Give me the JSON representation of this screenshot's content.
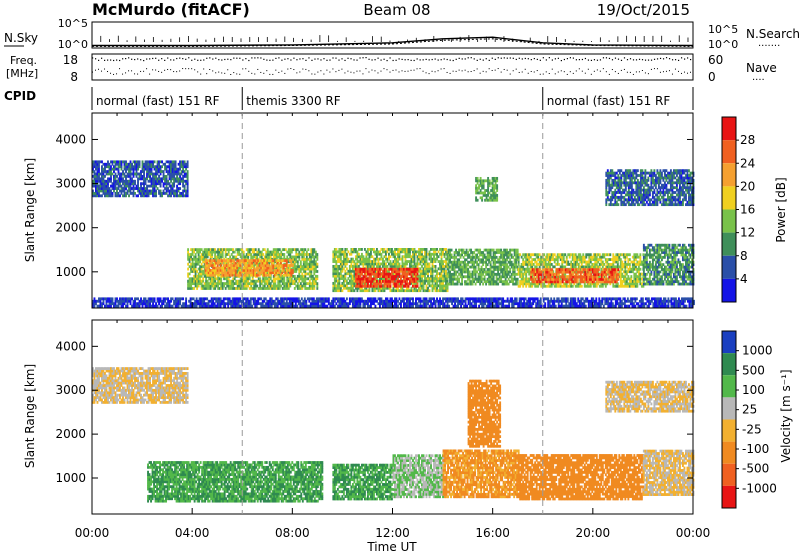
{
  "header": {
    "station": "McMurdo (fitACF)",
    "beam": "Beam 08",
    "date": "19/Oct/2015"
  },
  "noise_panel": {
    "left_label": "N.Sky",
    "right_label": "N.Search",
    "right_dots": "·······",
    "left_ticks": [
      "10^5",
      "10^0"
    ],
    "right_ticks": [
      "10^5",
      "10^0"
    ]
  },
  "freq_panel": {
    "left_label_1": "Freq.",
    "left_label_2": "[MHz]",
    "right_label": "Nave",
    "right_dots": "····",
    "left_ticks": [
      "18",
      "8"
    ],
    "right_ticks": [
      "60",
      "0"
    ]
  },
  "cpid": {
    "label": "CPID",
    "segments": [
      {
        "start_hour": 0,
        "end_hour": 6,
        "text": "normal (fast) 151 RF"
      },
      {
        "start_hour": 6,
        "end_hour": 18,
        "text": "themis 3300 RF"
      },
      {
        "start_hour": 18,
        "end_hour": 24,
        "text": "normal (fast) 151 RF"
      }
    ]
  },
  "power_panel": {
    "ylabel": "Slant Range [km]",
    "yticks": [
      "1000",
      "2000",
      "3000",
      "4000"
    ],
    "colorbar_label": "Power [dB]",
    "colorbar_ticks": [
      "4",
      "8",
      "12",
      "16",
      "20",
      "24",
      "28"
    ],
    "colors": [
      "#1414e6",
      "#2a4fa8",
      "#3f8f5a",
      "#79c24a",
      "#f0d020",
      "#f5a030",
      "#f06020",
      "#e81414"
    ]
  },
  "velocity_panel": {
    "ylabel": "Slant Range [km]",
    "yticks": [
      "1000",
      "2000",
      "3000",
      "4000"
    ],
    "colorbar_label": "Velocity [m s⁻¹]",
    "colorbar_ticks": [
      "1000",
      "500",
      "100",
      "25",
      "-25",
      "-100",
      "-500",
      "-1000"
    ],
    "colors": [
      "#1a3fc0",
      "#2f8a50",
      "#52b84a",
      "#b8b8b8",
      "#f2b030",
      "#f08a20",
      "#f06020",
      "#e81414"
    ]
  },
  "x_axis": {
    "label": "Time UT",
    "ticks": [
      "00:00",
      "04:00",
      "08:00",
      "12:00",
      "16:00",
      "20:00",
      "00:00"
    ]
  },
  "chart_data": [
    {
      "type": "line",
      "title": "",
      "xlabel": "",
      "ylabel": "N.Sky",
      "x_range_hours": [
        0,
        24
      ],
      "series": [
        {
          "name": "N.Sky",
          "x": [
            0,
            4,
            8,
            12,
            14,
            16,
            18,
            20,
            24
          ],
          "values": [
            3,
            3,
            4,
            10,
            60,
            120,
            10,
            4,
            3
          ]
        },
        {
          "name": "N.Search",
          "x": [
            0,
            4,
            8,
            12,
            14,
            16,
            18,
            20,
            24
          ],
          "values": [
            2,
            2,
            3,
            6,
            30,
            60,
            6,
            3,
            2
          ]
        }
      ]
    },
    {
      "type": "scatter",
      "title": "",
      "xlabel": "Time UT",
      "ylabel": "Slant Range [km]",
      "x_range_hours": [
        0,
        24
      ],
      "ylim": [
        180,
        4600
      ],
      "colorbar": {
        "label": "Power [dB]",
        "range": [
          0,
          30
        ],
        "ticks": [
          4,
          8,
          12,
          16,
          20,
          24,
          28
        ]
      },
      "regions": [
        {
          "t0": 0.0,
          "t1": 3.8,
          "r0": 2700,
          "r1": 3500,
          "value": 6
        },
        {
          "t0": 0.0,
          "t1": 24.0,
          "r0": 200,
          "r1": 380,
          "value": 4
        },
        {
          "t0": 3.8,
          "t1": 9.0,
          "r0": 600,
          "r1": 1500,
          "value": 14
        },
        {
          "t0": 4.5,
          "t1": 8.0,
          "r0": 900,
          "r1": 1250,
          "value": 22
        },
        {
          "t0": 9.6,
          "t1": 14.2,
          "r0": 550,
          "r1": 1500,
          "value": 14
        },
        {
          "t0": 10.5,
          "t1": 13.0,
          "r0": 650,
          "r1": 1050,
          "value": 28
        },
        {
          "t0": 14.2,
          "t1": 17.0,
          "r0": 700,
          "r1": 1500,
          "value": 12
        },
        {
          "t0": 17.0,
          "t1": 22.0,
          "r0": 650,
          "r1": 1400,
          "value": 15
        },
        {
          "t0": 17.5,
          "t1": 21.0,
          "r0": 750,
          "r1": 1050,
          "value": 26
        },
        {
          "t0": 22.0,
          "t1": 24.0,
          "r0": 700,
          "r1": 1600,
          "value": 10
        },
        {
          "t0": 15.3,
          "t1": 16.2,
          "r0": 2600,
          "r1": 3100,
          "value": 12
        },
        {
          "t0": 20.5,
          "t1": 24.0,
          "r0": 2500,
          "r1": 3300,
          "value": 7
        }
      ]
    },
    {
      "type": "scatter",
      "title": "",
      "xlabel": "Time UT",
      "ylabel": "Slant Range [km]",
      "x_range_hours": [
        0,
        24
      ],
      "ylim": [
        180,
        4600
      ],
      "colorbar": {
        "label": "Velocity [m s⁻¹]",
        "ticks": [
          1000,
          500,
          100,
          25,
          -25,
          -100,
          -500,
          -1000
        ]
      },
      "regions": [
        {
          "t0": 0.0,
          "t1": 3.8,
          "r0": 2700,
          "r1": 3500,
          "value": 0
        },
        {
          "t0": 2.2,
          "t1": 9.2,
          "r0": 450,
          "r1": 1350,
          "value": 300
        },
        {
          "t0": 9.6,
          "t1": 12.0,
          "r0": 500,
          "r1": 1300,
          "value": 300
        },
        {
          "t0": 12.0,
          "t1": 14.0,
          "r0": 550,
          "r1": 1500,
          "value": 60
        },
        {
          "t0": 14.0,
          "t1": 17.0,
          "r0": 550,
          "r1": 1600,
          "value": -80
        },
        {
          "t0": 17.0,
          "t1": 22.0,
          "r0": 500,
          "r1": 1500,
          "value": -150
        },
        {
          "t0": 22.0,
          "t1": 24.0,
          "r0": 600,
          "r1": 1600,
          "value": 0
        },
        {
          "t0": 15.0,
          "t1": 16.3,
          "r0": 1700,
          "r1": 3200,
          "value": -150
        },
        {
          "t0": 20.5,
          "t1": 24.0,
          "r0": 2500,
          "r1": 3200,
          "value": 0
        }
      ]
    }
  ]
}
